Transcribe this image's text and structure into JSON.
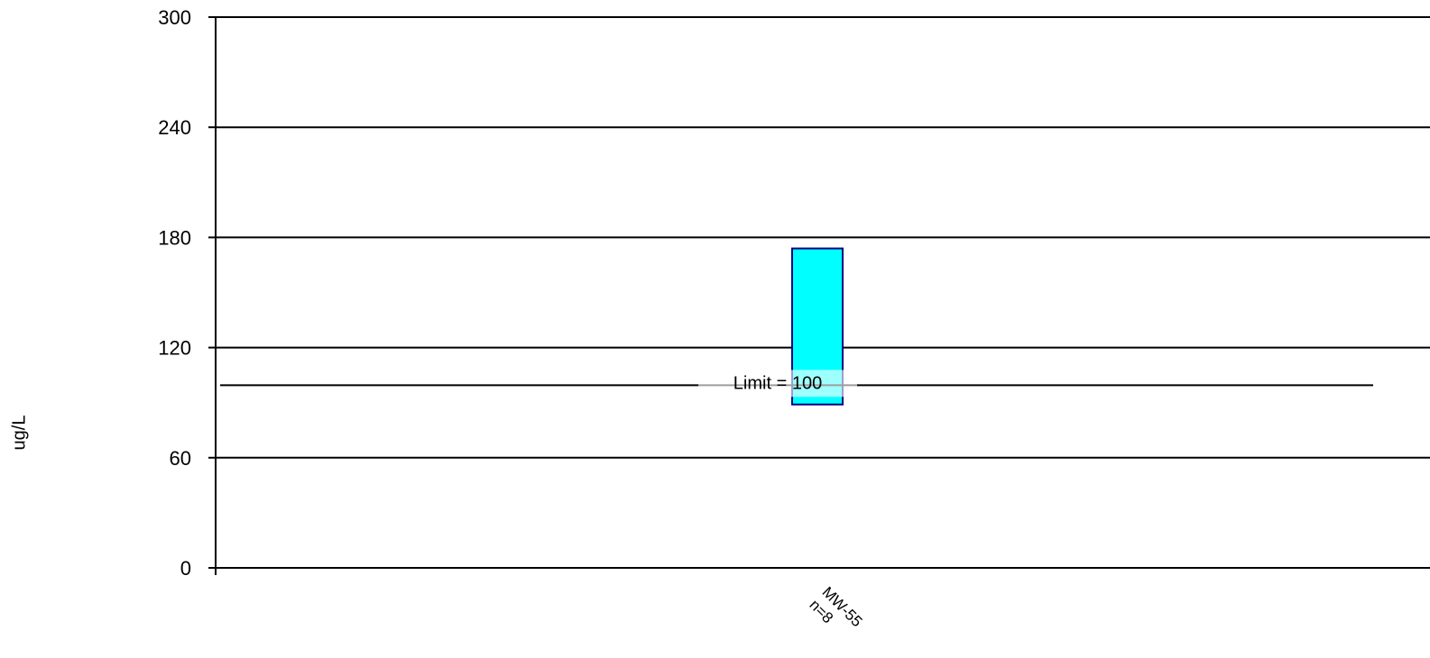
{
  "chart_data": {
    "type": "bar",
    "subtype": "floating-range",
    "ylabel": "ug/L",
    "ylim": [
      0,
      300
    ],
    "yticks": [
      0,
      60,
      120,
      180,
      240,
      300
    ],
    "grid": true,
    "categories": [
      {
        "name": "MW-55",
        "n_label": "n=8",
        "low": 89,
        "high": 174
      }
    ],
    "reference_line": {
      "label": "Limit = 100",
      "value": 100
    },
    "colors": {
      "bar_fill": "#00ffff",
      "bar_stroke": "#000080",
      "grid": "#000000",
      "limit_line": "#000000"
    }
  }
}
